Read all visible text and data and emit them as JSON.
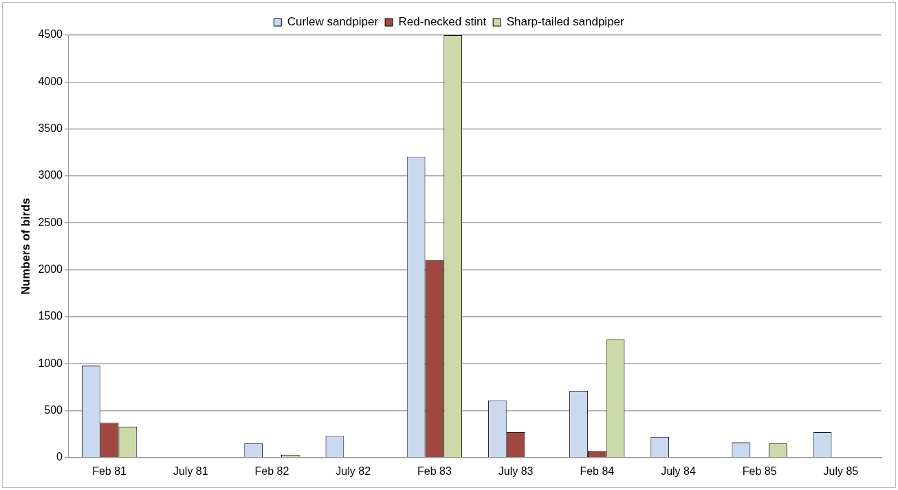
{
  "chart_data": {
    "type": "bar",
    "ylabel": "Numbers of birds",
    "categories": [
      "Feb 81",
      "July 81",
      "Feb 82",
      "July 82",
      "Feb 83",
      "July 83",
      "Feb 84",
      "July 84",
      "Feb 85",
      "July 85"
    ],
    "series": [
      {
        "name": "Curlew sandpiper",
        "color": "#c9daf0",
        "values": [
          980,
          0,
          150,
          230,
          3200,
          610,
          710,
          220,
          160,
          270
        ]
      },
      {
        "name": "Red-necked stint",
        "color": "#a0473f",
        "values": [
          370,
          0,
          5,
          0,
          2100,
          270,
          70,
          0,
          0,
          0
        ]
      },
      {
        "name": "Sharp-tailed sandpiper",
        "color": "#ccd9a8",
        "values": [
          330,
          0,
          30,
          0,
          4500,
          0,
          1260,
          0,
          150,
          0
        ]
      }
    ],
    "ylim": [
      0,
      4500
    ],
    "yticks": [
      0,
      500,
      1000,
      1500,
      2000,
      2500,
      3000,
      3500,
      4000,
      4500
    ],
    "grid": "y",
    "legend": "top"
  }
}
